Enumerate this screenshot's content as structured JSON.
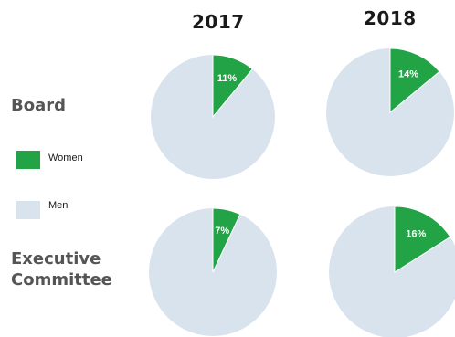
{
  "chart_data": {
    "type": "pie",
    "columns": [
      "2017",
      "2018"
    ],
    "rows": [
      "Board",
      "Executive\nCommittee"
    ],
    "legend": [
      {
        "name": "Women",
        "color": "#22a346"
      },
      {
        "name": "Men",
        "color": "#d9e3ee"
      }
    ],
    "pies": [
      {
        "row": "Board",
        "year": "2017",
        "women_pct": 11,
        "label": "11%"
      },
      {
        "row": "Board",
        "year": "2018",
        "women_pct": 14,
        "label": "14%"
      },
      {
        "row": "Executive Committee",
        "year": "2017",
        "women_pct": 7,
        "label": "7%"
      },
      {
        "row": "Executive Committee",
        "year": "2018",
        "women_pct": 16,
        "label": "16%"
      }
    ]
  },
  "labels": {
    "year_2017": "2017",
    "year_2018": "2018",
    "row_board": "Board",
    "row_exec_line1": "Executive",
    "row_exec_line2": "Committee",
    "legend_women": "Women",
    "legend_men": "Men"
  }
}
